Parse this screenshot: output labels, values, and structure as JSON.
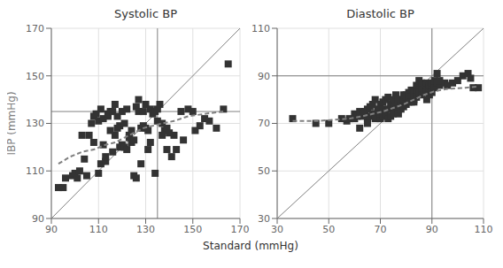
{
  "chart_data": [
    {
      "type": "scatter",
      "title": "Systolic BP",
      "xlabel": "Standard (mmHg)",
      "ylabel": "IBP (mmHg)",
      "xlim": [
        90,
        170
      ],
      "ylim": [
        90,
        170
      ],
      "xticks": [
        90,
        110,
        130,
        150,
        170
      ],
      "yticks": [
        90,
        110,
        130,
        150,
        170
      ],
      "grid": true,
      "hline": 135,
      "vline": 135,
      "series": [
        {
          "type": "line",
          "color": "#808080",
          "line_style": "solid",
          "x": [
            90,
            170
          ],
          "values": [
            90,
            170
          ]
        },
        {
          "type": "scatter",
          "color": "#333333",
          "marker": "square",
          "x": [
            93,
            95,
            96,
            99,
            100,
            101,
            102,
            103,
            104,
            105,
            106,
            107,
            108,
            108,
            109,
            110,
            110,
            111,
            111,
            112,
            112,
            113,
            113,
            114,
            114,
            115,
            115,
            116,
            116,
            117,
            117,
            118,
            118,
            119,
            119,
            120,
            120,
            121,
            121,
            122,
            122,
            123,
            123,
            124,
            124,
            125,
            125,
            126,
            126,
            127,
            127,
            128,
            128,
            129,
            129,
            130,
            130,
            131,
            131,
            132,
            132,
            133,
            134,
            134,
            135,
            135,
            136,
            137,
            137,
            138,
            139,
            139,
            140,
            141,
            142,
            143,
            145,
            146,
            148,
            150,
            151,
            153,
            155,
            157,
            160,
            163,
            165
          ],
          "values": [
            103,
            103,
            107,
            108,
            109,
            107,
            110,
            125,
            115,
            108,
            125,
            130,
            133,
            122,
            134,
            109,
            131,
            113,
            136,
            121,
            132,
            114,
            116,
            133,
            134,
            127,
            135,
            135,
            118,
            125,
            138,
            133,
            128,
            129,
            120,
            121,
            135,
            130,
            120,
            119,
            136,
            125,
            124,
            122,
            127,
            123,
            108,
            137,
            107,
            140,
            135,
            128,
            113,
            129,
            135,
            128,
            138,
            127,
            119,
            136,
            122,
            134,
            109,
            135,
            136,
            131,
            138,
            130,
            125,
            127,
            128,
            119,
            126,
            116,
            125,
            119,
            135,
            123,
            136,
            135,
            127,
            129,
            132,
            131,
            128,
            136,
            155
          ]
        },
        {
          "type": "line",
          "color": "#808080",
          "line_style": "dashed",
          "x": [
            93,
            98,
            103,
            108,
            113,
            117,
            121,
            125,
            129,
            133,
            137,
            142,
            148,
            155,
            163
          ],
          "values": [
            113,
            116,
            118,
            119,
            121,
            122,
            124,
            126,
            128,
            129,
            130,
            131,
            133,
            134,
            135
          ]
        }
      ]
    },
    {
      "type": "scatter",
      "title": "Diastolic BP",
      "xlim": [
        30,
        110
      ],
      "ylim": [
        30,
        110
      ],
      "xticks": [
        30,
        50,
        70,
        90,
        110
      ],
      "yticks": [
        30,
        50,
        70,
        90,
        110
      ],
      "grid": true,
      "hline": 90,
      "vline": 90,
      "series": [
        {
          "type": "line",
          "color": "#808080",
          "line_style": "solid",
          "x": [
            30,
            110
          ],
          "values": [
            30,
            110
          ]
        },
        {
          "type": "scatter",
          "color": "#333333",
          "marker": "square",
          "x": [
            36,
            45,
            50,
            55,
            57,
            58,
            60,
            60,
            61,
            62,
            62,
            63,
            63,
            64,
            64,
            65,
            65,
            65,
            66,
            66,
            67,
            67,
            68,
            68,
            68,
            69,
            69,
            70,
            70,
            70,
            71,
            71,
            71,
            72,
            72,
            72,
            73,
            73,
            73,
            74,
            74,
            74,
            75,
            75,
            75,
            76,
            76,
            76,
            77,
            77,
            77,
            78,
            78,
            78,
            79,
            79,
            79,
            80,
            80,
            80,
            81,
            81,
            81,
            82,
            82,
            82,
            83,
            83,
            83,
            84,
            84,
            84,
            85,
            85,
            85,
            86,
            86,
            86,
            87,
            87,
            87,
            88,
            88,
            88,
            89,
            89,
            89,
            90,
            90,
            90,
            91,
            91,
            92,
            92,
            93,
            93,
            95,
            96,
            98,
            100,
            102,
            104,
            105,
            106,
            108
          ],
          "values": [
            72,
            70,
            70,
            72,
            71,
            72,
            72,
            74,
            73,
            68,
            75,
            73,
            74,
            74,
            75,
            72,
            70,
            76,
            73,
            77,
            74,
            78,
            74,
            72,
            80,
            75,
            76,
            72,
            74,
            78,
            73,
            76,
            79,
            75,
            74,
            80,
            76,
            72,
            81,
            76,
            78,
            73,
            77,
            80,
            74,
            75,
            78,
            82,
            76,
            80,
            74,
            80,
            79,
            76,
            77,
            82,
            80,
            78,
            82,
            81,
            80,
            79,
            83,
            82,
            79,
            84,
            80,
            83,
            79,
            84,
            81,
            86,
            84,
            83,
            88,
            85,
            82,
            87,
            84,
            86,
            83,
            84,
            87,
            80,
            85,
            86,
            82,
            86,
            83,
            87,
            88,
            85,
            87,
            91,
            86,
            88,
            87,
            86,
            87,
            88,
            90,
            91,
            89,
            85,
            85
          ]
        },
        {
          "type": "line",
          "color": "#808080",
          "line_style": "dashed",
          "x": [
            36,
            45,
            52,
            58,
            63,
            67,
            71,
            75,
            79,
            83,
            87,
            91,
            96,
            103,
            108
          ],
          "values": [
            71,
            71,
            71.5,
            72,
            73,
            74,
            75,
            76.5,
            78,
            80,
            82,
            83.5,
            84.5,
            85,
            85.5
          ]
        }
      ]
    }
  ]
}
